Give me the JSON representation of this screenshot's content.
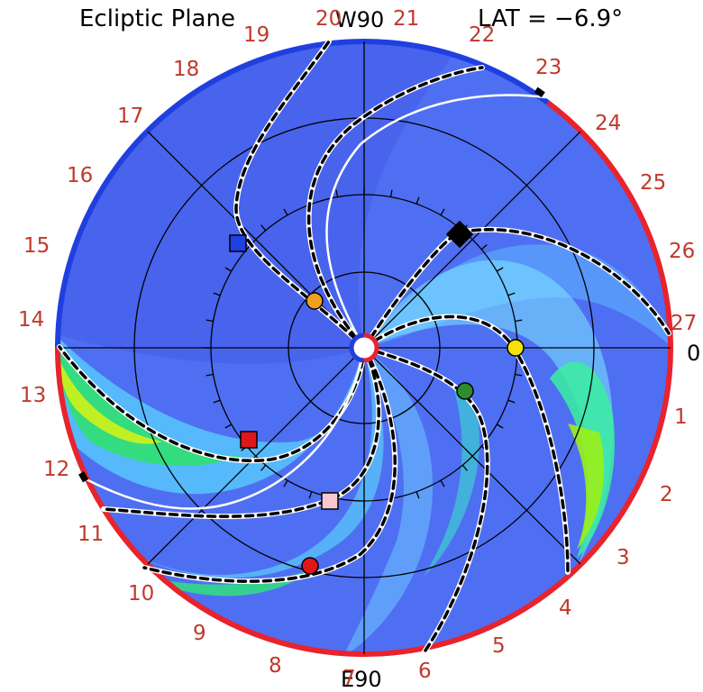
{
  "header": {
    "title": "Ecliptic Plane",
    "lat_label": "LAT = −6.9°"
  },
  "directions": {
    "top": "W90",
    "bottom": "E90",
    "right": "0"
  },
  "rim_labels": [
    "1",
    "2",
    "3",
    "4",
    "5",
    "6",
    "7",
    "8",
    "9",
    "10",
    "11",
    "12",
    "13",
    "14",
    "15",
    "16",
    "17",
    "18",
    "19",
    "20",
    "21",
    "22",
    "23",
    "24",
    "25",
    "26",
    "27"
  ],
  "colors": {
    "rim_blue": "#1f3fe0",
    "rim_red": "#e8232c",
    "background_blue": "#4a6cf0",
    "label_red": "#c0392b"
  },
  "markers": [
    {
      "name": "blue-square-marker",
      "shape": "square",
      "color": "#1f3fe0"
    },
    {
      "name": "orange-circle-marker",
      "shape": "circle",
      "color": "#f0a020"
    },
    {
      "name": "black-diamond-marker",
      "shape": "diamond",
      "color": "#000000"
    },
    {
      "name": "yellow-circle-marker",
      "shape": "circle",
      "color": "#f4e20a"
    },
    {
      "name": "green-circle-marker",
      "shape": "circle",
      "color": "#2e8b2e"
    },
    {
      "name": "red-square-marker",
      "shape": "square",
      "color": "#e0161b"
    },
    {
      "name": "pink-square-marker",
      "shape": "square",
      "color": "#f8c8d0"
    },
    {
      "name": "red-circle-marker",
      "shape": "circle",
      "color": "#e0161b"
    }
  ]
}
